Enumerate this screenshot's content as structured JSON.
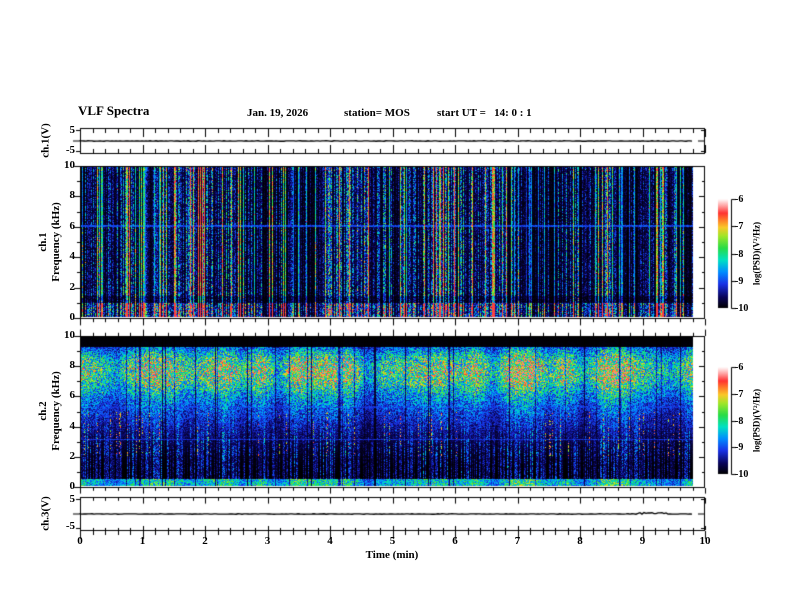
{
  "header": {
    "title": "VLF Spectra",
    "date": "Jan. 19, 2026",
    "station": "station= MOS",
    "start_ut": "start UT =   14: 0 : 1"
  },
  "xaxis": {
    "label": "Time (min)",
    "tick_labels": [
      "0",
      "1",
      "2",
      "3",
      "4",
      "5",
      "6",
      "7",
      "8",
      "9",
      "10"
    ],
    "range": [
      0,
      10
    ],
    "minor_ticks_per_major": 5
  },
  "panels": {
    "ch1_strip": {
      "ylabel": "ch.1(V)",
      "ytick_labels": [
        "5",
        "-5"
      ],
      "yrange": [
        -5,
        5
      ]
    },
    "ch1_spec": {
      "channel": "ch.1",
      "ylabel": "Frequency (kHz)",
      "ytick_labels": [
        "10",
        "8",
        "6",
        "4",
        "2",
        "0"
      ],
      "yrange": [
        0,
        10
      ]
    },
    "ch2_spec": {
      "channel": "ch.2",
      "ylabel": "Frequency (kHz)",
      "ytick_labels": [
        "10",
        "8",
        "6",
        "4",
        "2",
        "0"
      ],
      "yrange": [
        0,
        10
      ]
    },
    "ch3_strip": {
      "ylabel": "ch.3(V)",
      "ytick_labels": [
        "5",
        "-5"
      ],
      "yrange": [
        -5,
        5
      ]
    }
  },
  "colorbar": {
    "label": "log(PSD)(V²/Hz)",
    "tick_labels": [
      "-6",
      "-7",
      "-8",
      "-9",
      "-10"
    ],
    "range": [
      -10,
      -6
    ],
    "colormap_stops": [
      [
        0.0,
        [
          0,
          0,
          0
        ]
      ],
      [
        0.1,
        [
          10,
          5,
          90
        ]
      ],
      [
        0.22,
        [
          25,
          50,
          230
        ]
      ],
      [
        0.33,
        [
          0,
          140,
          255
        ]
      ],
      [
        0.44,
        [
          0,
          225,
          195
        ]
      ],
      [
        0.55,
        [
          40,
          220,
          70
        ]
      ],
      [
        0.66,
        [
          160,
          230,
          40
        ]
      ],
      [
        0.74,
        [
          250,
          200,
          40
        ]
      ],
      [
        0.81,
        [
          255,
          120,
          40
        ]
      ],
      [
        0.87,
        [
          255,
          50,
          50
        ]
      ],
      [
        0.93,
        [
          255,
          150,
          150
        ]
      ],
      [
        1.0,
        [
          255,
          255,
          255
        ]
      ]
    ]
  },
  "chart_data": [
    {
      "type": "line",
      "name": "ch1_voltage_trace",
      "xlabel": "Time (min)",
      "ylabel": "ch.1(V)",
      "xlim": [
        0,
        10
      ],
      "ylim": [
        -5,
        5
      ],
      "x": [
        0,
        9.8
      ],
      "values": [
        0,
        0
      ],
      "description": "flat trace at ~0 V for the whole 9.8 min record"
    },
    {
      "type": "heatmap",
      "name": "ch1_spectrogram",
      "xlabel": "Time (min)",
      "ylabel": "Frequency (kHz)",
      "zlabel": "log(PSD)(V²/Hz)",
      "xlim": [
        0,
        10
      ],
      "ylim": [
        0,
        10
      ],
      "zlim": [
        -10,
        -6
      ],
      "background_level": -10,
      "record_end_min": 9.8,
      "features": [
        "dense narrow vertical broadband impulses (sferics) spanning 0-10 kHz, mostly -9.5 to -8.5 (blue/cyan)",
        "occasional stronger columns reaching -8 to -7 (green, rare red)",
        "persistent faint horizontal line near 6 kHz at about -8.7",
        "enhanced speckled band below ~0.9 kHz at about -8.5 to -7.5",
        "quiet notch around 1 kHz"
      ]
    },
    {
      "type": "heatmap",
      "name": "ch2_spectrogram",
      "xlabel": "Time (min)",
      "ylabel": "Frequency (kHz)",
      "zlabel": "log(PSD)(V²/Hz)",
      "xlim": [
        0,
        10
      ],
      "ylim": [
        0,
        10
      ],
      "zlim": [
        -10,
        -6
      ],
      "background_level": -10,
      "record_end_min": 9.8,
      "features": [
        "continuous broadband noise band ~2-9.3 kHz peaking near 7-8.5 kHz at about -8 to -7.5 (green/cyan)",
        "black gap above ~9.3 kHz",
        "impulsive blue vertical streaks extending down to 0.5 kHz, some with warm (-7, red/orange) cores near 2-5 kHz",
        "bright speckled band below ~0.4 kHz",
        "faint horizontal lines near 5.3 and 3.1 kHz"
      ]
    },
    {
      "type": "line",
      "name": "ch3_voltage_trace",
      "xlabel": "Time (min)",
      "ylabel": "ch.3(V)",
      "xlim": [
        0,
        10
      ],
      "ylim": [
        -5,
        5
      ],
      "x": [
        0,
        9.8
      ],
      "values": [
        0,
        0
      ],
      "description": "flat trace at ~0 V with a small noise burst near 9 min"
    }
  ],
  "render": {
    "seed": 20260119,
    "data_end_min": 9.8
  }
}
